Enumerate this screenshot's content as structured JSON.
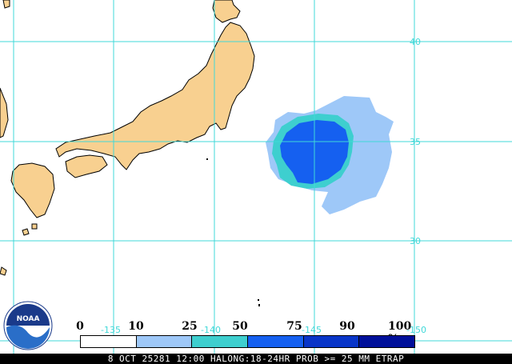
{
  "map": {
    "latitude_labels": [
      "40",
      "35",
      "30"
    ],
    "longitude_labels": [
      "-135",
      "-140",
      "-145",
      "-150"
    ]
  },
  "legend": {
    "thresholds": [
      "0",
      "10",
      "25",
      "50",
      "75",
      "90",
      "100 %"
    ],
    "colors": [
      "#ffffff",
      "#9ec8f8",
      "#3ecfcf",
      "#1560f0",
      "#0835c8",
      "#00109a"
    ]
  },
  "logo": {
    "text": "NOAA"
  },
  "footer": {
    "text": "8 OCT 25281 12:00 HALONG:18-24HR PROB >= 25 MM ETRAP"
  },
  "colors": {
    "land": "#f8d090",
    "ocean": "#ffffff",
    "grid": "#40d8d8",
    "coast": "#000000"
  }
}
